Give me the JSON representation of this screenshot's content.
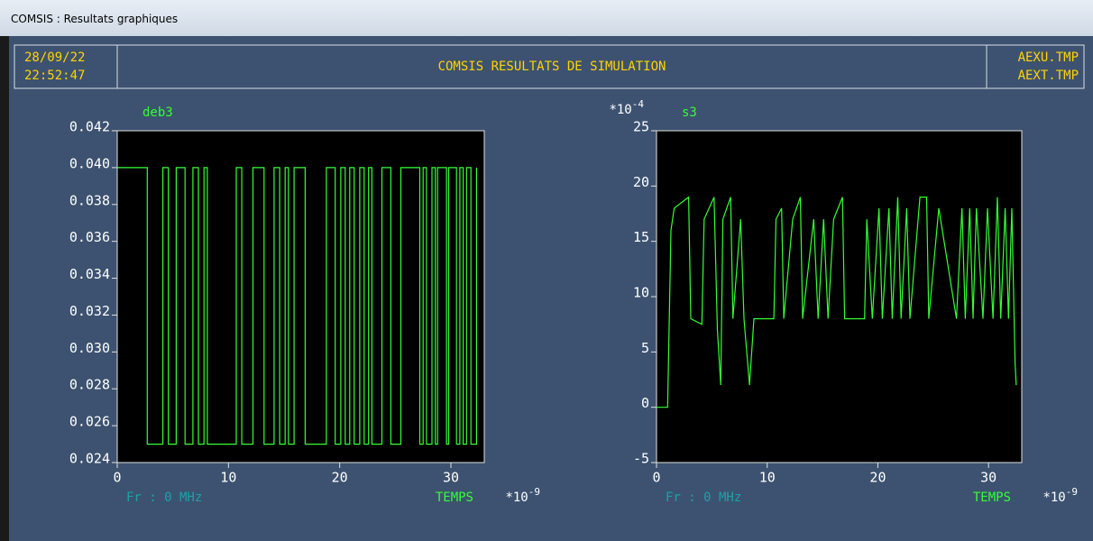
{
  "window": {
    "title": "COMSIS : Resultats graphiques"
  },
  "header": {
    "date": "28/09/22",
    "time": "22:52:47",
    "title": "COMSIS RESULTATS DE SIMULATION",
    "files": [
      "AEXU.TMP",
      "AEXT.TMP"
    ]
  },
  "chart_data": [
    {
      "type": "line",
      "title": "deb3",
      "color": "#33ff33",
      "xlim": [
        0,
        33
      ],
      "xticks": [
        0,
        10,
        20,
        30
      ],
      "xlabel": "TEMPS",
      "x_scale": {
        "base": "*10",
        "exponent": "-9"
      },
      "annotation": "Fr : 0 MHz",
      "ylim": [
        0.024,
        0.042
      ],
      "yticks": [
        0.024,
        0.026,
        0.028,
        {
          "value": 0.03,
          "label": "0.030"
        },
        0.032,
        0.034,
        0.036,
        0.038,
        {
          "value": 0.04,
          "label": "0.040"
        },
        0.042
      ],
      "x": [
        0,
        2.7,
        2.7,
        4.1,
        4.1,
        4.6,
        4.6,
        5.3,
        5.3,
        6.1,
        6.1,
        6.8,
        6.8,
        7.3,
        7.3,
        7.8,
        7.8,
        8.1,
        8.1,
        10.7,
        10.7,
        11.2,
        11.2,
        12.2,
        12.2,
        13.2,
        13.2,
        14.1,
        14.1,
        14.6,
        14.6,
        15.1,
        15.1,
        15.4,
        15.4,
        15.9,
        15.9,
        16.9,
        16.9,
        18.8,
        18.8,
        19.6,
        19.6,
        20.1,
        20.1,
        20.5,
        20.5,
        20.9,
        20.9,
        21.3,
        21.3,
        21.8,
        21.8,
        22.2,
        22.2,
        22.6,
        22.6,
        22.9,
        22.9,
        23.8,
        23.8,
        24.6,
        24.6,
        25.5,
        25.5,
        27.2,
        27.2,
        27.5,
        27.5,
        27.8,
        27.8,
        28.3,
        28.3,
        28.6,
        28.6,
        28.8,
        28.8,
        29.6,
        29.6,
        29.8,
        29.8,
        30.5,
        30.5,
        30.8,
        30.8,
        31.1,
        31.1,
        31.4,
        31.4,
        31.8,
        31.8,
        32.3,
        32.3
      ],
      "values": [
        0.04,
        0.04,
        0.025,
        0.025,
        0.04,
        0.04,
        0.025,
        0.025,
        0.04,
        0.04,
        0.025,
        0.025,
        0.04,
        0.04,
        0.025,
        0.025,
        0.04,
        0.04,
        0.025,
        0.025,
        0.04,
        0.04,
        0.025,
        0.025,
        0.04,
        0.04,
        0.025,
        0.025,
        0.04,
        0.04,
        0.025,
        0.025,
        0.04,
        0.04,
        0.025,
        0.025,
        0.04,
        0.04,
        0.025,
        0.025,
        0.04,
        0.04,
        0.025,
        0.025,
        0.04,
        0.04,
        0.025,
        0.025,
        0.04,
        0.04,
        0.025,
        0.025,
        0.04,
        0.04,
        0.025,
        0.025,
        0.04,
        0.04,
        0.025,
        0.025,
        0.04,
        0.04,
        0.025,
        0.025,
        0.04,
        0.04,
        0.025,
        0.025,
        0.04,
        0.04,
        0.025,
        0.025,
        0.04,
        0.04,
        0.025,
        0.025,
        0.04,
        0.04,
        0.025,
        0.025,
        0.04,
        0.04,
        0.025,
        0.025,
        0.04,
        0.04,
        0.025,
        0.025,
        0.04,
        0.04,
        0.025,
        0.025,
        0.04
      ]
    },
    {
      "type": "line",
      "title": "s3",
      "color": "#33ff33",
      "xlim": [
        0,
        33
      ],
      "xticks": [
        0,
        10,
        20,
        30
      ],
      "xlabel": "TEMPS",
      "x_scale": {
        "base": "*10",
        "exponent": "-9"
      },
      "annotation": "Fr : 0 MHz",
      "ylim": [
        -5,
        25
      ],
      "yticks": [
        -5,
        0,
        5,
        10,
        15,
        20,
        25
      ],
      "y_scale": {
        "base": "*10",
        "exponent": "-4"
      },
      "x": [
        0,
        1.0,
        1.3,
        1.6,
        2.9,
        3.1,
        4.1,
        4.3,
        5.2,
        5.5,
        5.8,
        6.0,
        6.7,
        6.9,
        7.6,
        7.9,
        8.4,
        8.8,
        10.6,
        10.8,
        11.3,
        11.5,
        12.3,
        13.0,
        13.2,
        14.2,
        14.6,
        15.1,
        15.5,
        16.0,
        16.8,
        17.0,
        18.8,
        19.0,
        19.5,
        20.1,
        20.4,
        21.0,
        21.3,
        21.8,
        22.1,
        22.6,
        22.9,
        23.8,
        24.4,
        24.6,
        25.5,
        27.1,
        27.6,
        27.9,
        28.3,
        28.6,
        28.9,
        29.5,
        29.9,
        30.4,
        30.8,
        31.1,
        31.5,
        31.8,
        32.1,
        32.4,
        32.5
      ],
      "values": [
        0,
        0,
        16,
        18,
        19,
        8,
        7.5,
        17,
        19,
        7,
        2,
        17,
        19,
        8,
        17,
        8,
        2,
        8,
        8,
        17,
        18,
        8,
        17,
        19,
        8,
        17,
        8,
        17,
        8,
        17,
        19,
        8,
        8,
        17,
        8,
        18,
        8,
        18,
        8,
        19,
        8,
        18,
        8,
        19,
        19,
        8,
        18,
        8,
        18,
        8,
        18,
        8,
        18,
        8,
        18,
        8,
        19,
        8,
        18,
        8,
        18,
        4,
        2
      ]
    }
  ]
}
